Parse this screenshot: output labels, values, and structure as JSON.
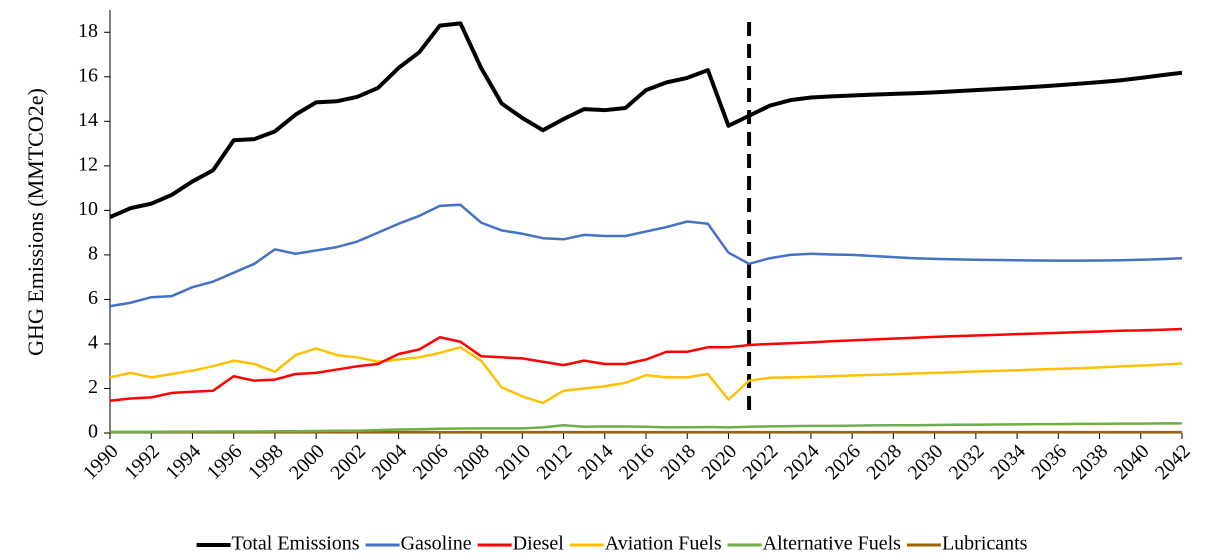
{
  "chart_data": {
    "type": "line",
    "y_label": "GHG Emissions (MMTCO2e)",
    "x": [
      1990,
      1991,
      1992,
      1993,
      1994,
      1995,
      1996,
      1997,
      1998,
      1999,
      2000,
      2001,
      2002,
      2003,
      2004,
      2005,
      2006,
      2007,
      2008,
      2009,
      2010,
      2011,
      2012,
      2013,
      2014,
      2015,
      2016,
      2017,
      2018,
      2019,
      2020,
      2021,
      2022,
      2023,
      2024,
      2025,
      2026,
      2027,
      2028,
      2029,
      2030,
      2031,
      2032,
      2033,
      2034,
      2035,
      2036,
      2037,
      2038,
      2039,
      2040,
      2041,
      2042
    ],
    "xlim": [
      1990,
      2042
    ],
    "xticks": [
      1990,
      1992,
      1994,
      1996,
      1998,
      2000,
      2002,
      2004,
      2006,
      2008,
      2010,
      2012,
      2014,
      2016,
      2018,
      2020,
      2022,
      2024,
      2026,
      2028,
      2030,
      2032,
      2034,
      2036,
      2038,
      2040,
      2042
    ],
    "ylim": [
      0,
      19
    ],
    "yticks": [
      0,
      2,
      4,
      6,
      8,
      10,
      12,
      14,
      16,
      18
    ],
    "forecast_start": 2021,
    "legend": "bottom",
    "series": [
      {
        "name": "Total Emissions",
        "color": "#000000",
        "values": [
          9.7,
          10.1,
          10.3,
          10.7,
          11.3,
          11.8,
          13.15,
          13.2,
          13.55,
          14.3,
          14.85,
          14.9,
          15.1,
          15.5,
          16.4,
          17.1,
          18.3,
          18.4,
          16.4,
          14.8,
          14.15,
          13.6,
          14.1,
          14.55,
          14.5,
          14.6,
          15.4,
          15.75,
          15.95,
          16.3,
          13.8,
          14.25,
          14.7,
          14.95,
          15.07,
          15.12,
          15.16,
          15.2,
          15.23,
          15.26,
          15.3,
          15.35,
          15.4,
          15.45,
          15.5,
          15.56,
          15.62,
          15.69,
          15.76,
          15.84,
          15.95,
          16.07,
          16.18
        ]
      },
      {
        "name": "Gasoline",
        "color": "#4472c4",
        "values": [
          5.7,
          5.85,
          6.1,
          6.15,
          6.55,
          6.8,
          7.2,
          7.6,
          8.25,
          8.05,
          8.2,
          8.35,
          8.6,
          9.0,
          9.4,
          9.75,
          10.2,
          10.25,
          9.45,
          9.1,
          8.95,
          8.75,
          8.7,
          8.9,
          8.85,
          8.85,
          9.05,
          9.25,
          9.5,
          9.4,
          8.1,
          7.6,
          7.85,
          8.0,
          8.05,
          8.02,
          8.0,
          7.95,
          7.9,
          7.85,
          7.82,
          7.8,
          7.78,
          7.77,
          7.76,
          7.75,
          7.74,
          7.74,
          7.75,
          7.76,
          7.78,
          7.81,
          7.85
        ]
      },
      {
        "name": "Diesel",
        "color": "#ff0000",
        "values": [
          1.45,
          1.55,
          1.6,
          1.8,
          1.85,
          1.9,
          2.55,
          2.35,
          2.4,
          2.65,
          2.7,
          2.85,
          3.0,
          3.1,
          3.55,
          3.75,
          4.3,
          4.1,
          3.45,
          3.4,
          3.35,
          3.2,
          3.05,
          3.25,
          3.1,
          3.1,
          3.3,
          3.65,
          3.65,
          3.85,
          3.85,
          3.95,
          4.0,
          4.03,
          4.07,
          4.12,
          4.16,
          4.2,
          4.24,
          4.28,
          4.32,
          4.35,
          4.38,
          4.41,
          4.44,
          4.47,
          4.5,
          4.53,
          4.56,
          4.59,
          4.61,
          4.64,
          4.67
        ]
      },
      {
        "name": "Aviation Fuels",
        "color": "#ffc000",
        "values": [
          2.5,
          2.7,
          2.5,
          2.65,
          2.8,
          3.0,
          3.25,
          3.1,
          2.75,
          3.5,
          3.8,
          3.5,
          3.4,
          3.2,
          3.3,
          3.4,
          3.6,
          3.85,
          3.25,
          2.05,
          1.65,
          1.35,
          1.9,
          2.0,
          2.1,
          2.25,
          2.6,
          2.5,
          2.5,
          2.65,
          1.5,
          2.35,
          2.48,
          2.5,
          2.52,
          2.55,
          2.58,
          2.61,
          2.64,
          2.67,
          2.7,
          2.73,
          2.76,
          2.79,
          2.82,
          2.85,
          2.88,
          2.91,
          2.95,
          2.99,
          3.03,
          3.07,
          3.12
        ]
      },
      {
        "name": "Alternative Fuels",
        "color": "#70ad47",
        "values": [
          0.05,
          0.05,
          0.05,
          0.06,
          0.06,
          0.07,
          0.07,
          0.07,
          0.08,
          0.08,
          0.09,
          0.1,
          0.1,
          0.13,
          0.16,
          0.17,
          0.19,
          0.2,
          0.21,
          0.21,
          0.21,
          0.25,
          0.35,
          0.28,
          0.3,
          0.29,
          0.28,
          0.25,
          0.26,
          0.27,
          0.25,
          0.28,
          0.3,
          0.31,
          0.32,
          0.32,
          0.33,
          0.34,
          0.35,
          0.35,
          0.36,
          0.37,
          0.37,
          0.38,
          0.39,
          0.4,
          0.4,
          0.41,
          0.41,
          0.42,
          0.42,
          0.43,
          0.43
        ]
      },
      {
        "name": "Lubricants",
        "color": "#9c6500",
        "values": [
          0.04,
          0.04,
          0.04,
          0.04,
          0.04,
          0.04,
          0.04,
          0.04,
          0.04,
          0.04,
          0.04,
          0.04,
          0.04,
          0.04,
          0.04,
          0.04,
          0.04,
          0.04,
          0.04,
          0.04,
          0.04,
          0.04,
          0.04,
          0.04,
          0.04,
          0.04,
          0.04,
          0.04,
          0.04,
          0.04,
          0.04,
          0.04,
          0.04,
          0.04,
          0.04,
          0.04,
          0.04,
          0.04,
          0.04,
          0.04,
          0.04,
          0.04,
          0.04,
          0.04,
          0.04,
          0.04,
          0.04,
          0.04,
          0.04,
          0.04,
          0.04,
          0.04,
          0.04
        ]
      }
    ]
  }
}
